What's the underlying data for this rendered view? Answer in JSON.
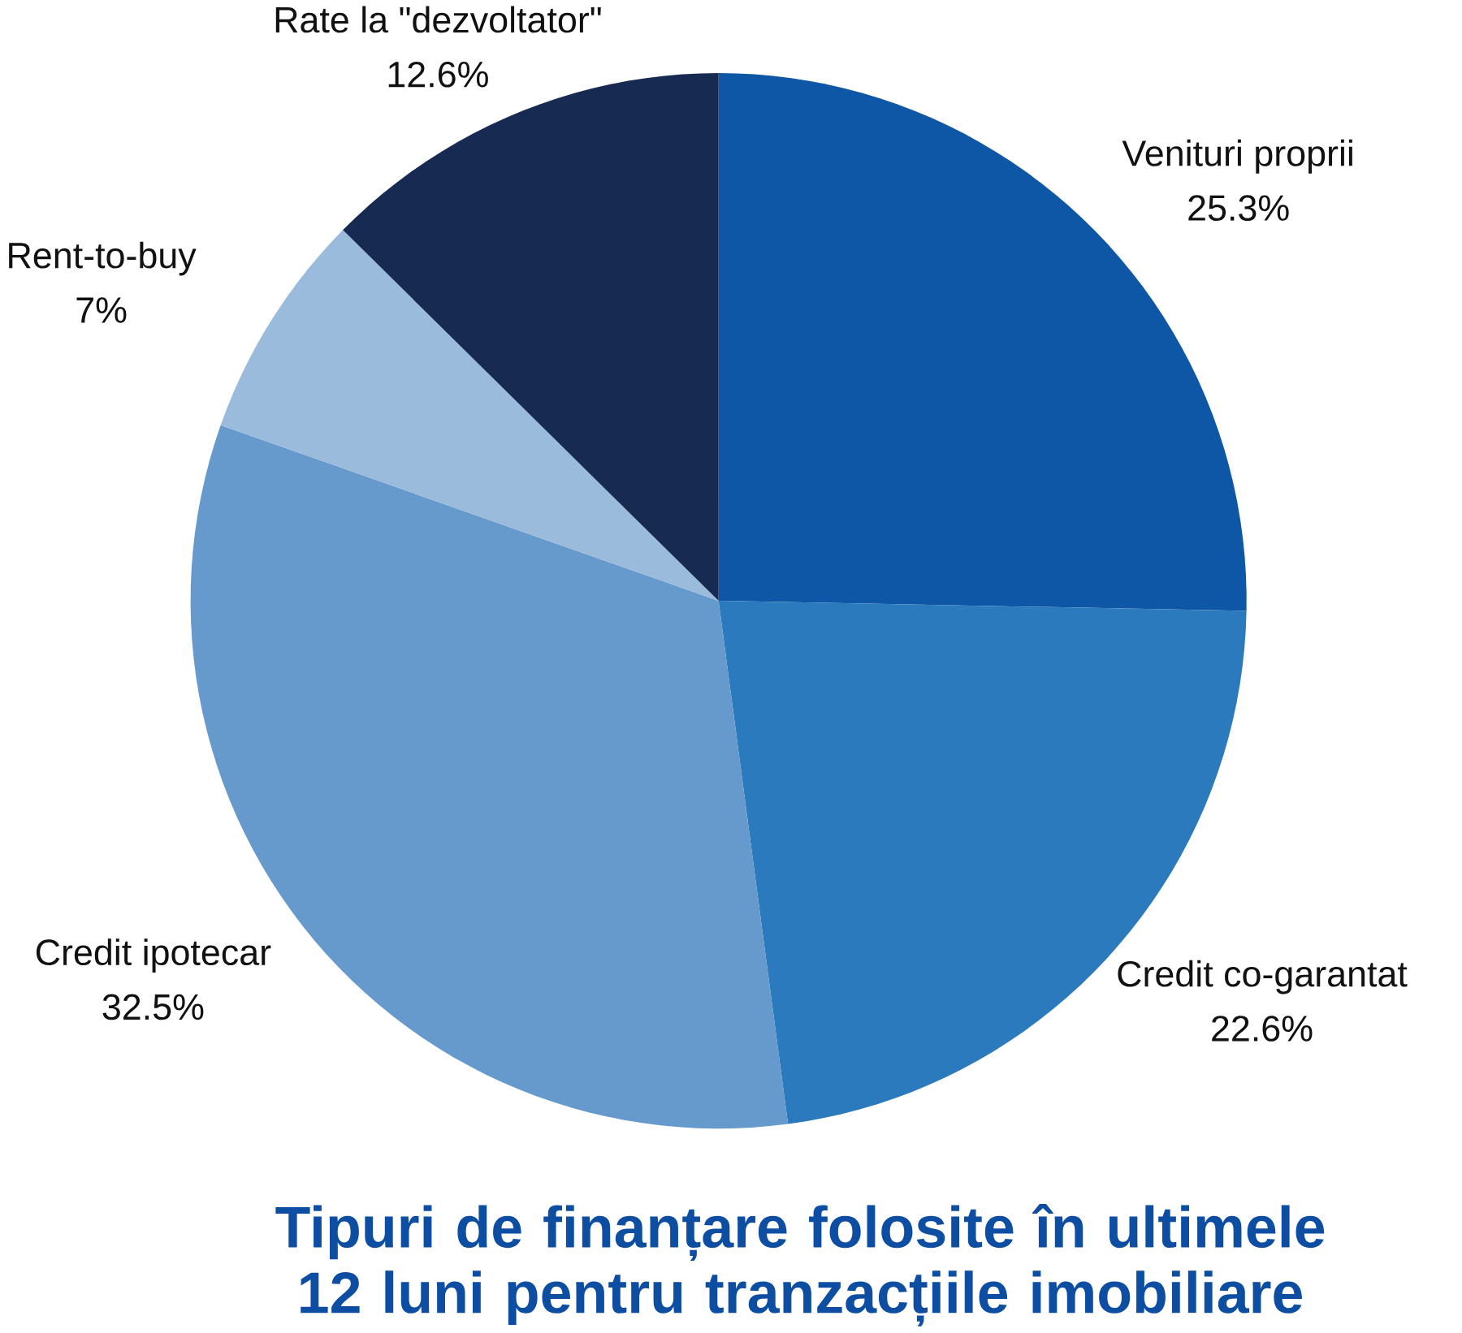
{
  "chart_data": {
    "type": "pie",
    "title": "Tipuri de finanțare folosite în ultimele 12 luni pentru tranzacțiile imobiliare",
    "categories": [
      "Venituri proprii",
      "Credit co-garantat",
      "Credit ipotecar",
      "Rent-to-buy",
      "Rate la \"dezvoltator\""
    ],
    "values": [
      25.3,
      22.6,
      32.5,
      7,
      12.6
    ],
    "value_labels": [
      "25.3%",
      "22.6%",
      "32.5%",
      "7%",
      "12.6%"
    ],
    "colors": [
      "#0d57a6",
      "#2a7abd",
      "#6699cc",
      "#9bbbdc",
      "#172b52"
    ]
  }
}
